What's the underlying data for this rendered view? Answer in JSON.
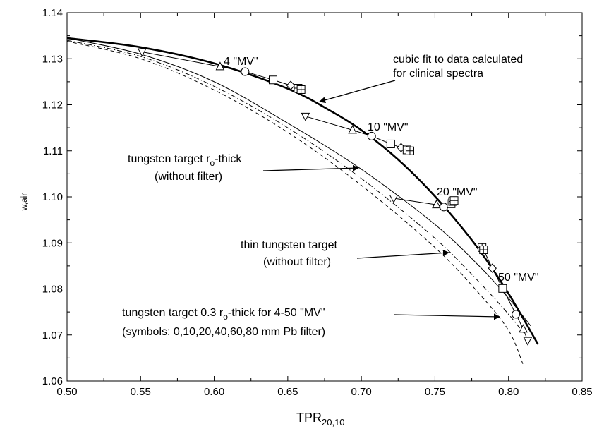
{
  "chart_data": {
    "type": "line",
    "title": "",
    "xlabel": {
      "main": "TPR",
      "sub": "20,10"
    },
    "ylabel": "w,air",
    "xlim": [
      0.5,
      0.85
    ],
    "ylim": [
      1.06,
      1.14
    ],
    "xticks": [
      0.5,
      0.55,
      0.6,
      0.65,
      0.7,
      0.75,
      0.8,
      0.85
    ],
    "yticks": [
      1.06,
      1.07,
      1.08,
      1.09,
      1.1,
      1.11,
      1.12,
      1.13,
      1.14
    ],
    "xtick_labels": [
      "0.50",
      "0.55",
      "0.60",
      "0.65",
      "0.70",
      "0.75",
      "0.80",
      "0.85"
    ],
    "ytick_labels": [
      "1.06",
      "1.07",
      "1.08",
      "1.09",
      "1.10",
      "1.11",
      "1.12",
      "1.13",
      "1.14"
    ],
    "grid": false,
    "curves": [
      {
        "style": "thick-solid",
        "x": [
          0.5,
          0.55,
          0.6,
          0.65,
          0.68,
          0.7,
          0.72,
          0.74,
          0.76,
          0.78,
          0.8,
          0.82
        ],
        "y": [
          1.1345,
          1.1325,
          1.129,
          1.1235,
          1.1185,
          1.1145,
          1.1095,
          1.1035,
          1.0965,
          1.0885,
          1.079,
          1.068
        ]
      },
      {
        "style": "thin-solid",
        "x": [
          0.5,
          0.55,
          0.6,
          0.65,
          0.7,
          0.75,
          0.78,
          0.8,
          0.815
        ],
        "y": [
          1.1345,
          1.131,
          1.125,
          1.116,
          1.106,
          1.094,
          1.085,
          1.078,
          1.072
        ]
      },
      {
        "style": "dash-dot",
        "x": [
          0.5,
          0.55,
          0.6,
          0.65,
          0.7,
          0.75,
          0.78,
          0.8,
          0.81
        ],
        "y": [
          1.134,
          1.1305,
          1.124,
          1.115,
          1.104,
          1.091,
          1.0815,
          1.0745,
          1.0705
        ]
      },
      {
        "style": "dashed",
        "x": [
          0.5,
          0.55,
          0.6,
          0.65,
          0.7,
          0.75,
          0.78,
          0.8,
          0.81
        ],
        "y": [
          1.1338,
          1.13,
          1.1232,
          1.114,
          1.1025,
          1.089,
          1.079,
          1.071,
          1.0635
        ]
      }
    ],
    "energy_groups": [
      {
        "label": "4 \"MV\"",
        "points": [
          {
            "sym": "triangle-down",
            "x": 0.551,
            "y": 1.1315
          },
          {
            "sym": "triangle-up",
            "x": 0.604,
            "y": 1.1283
          },
          {
            "sym": "circle",
            "x": 0.621,
            "y": 1.1272
          },
          {
            "sym": "square",
            "x": 0.64,
            "y": 1.1254
          },
          {
            "sym": "diamond",
            "x": 0.652,
            "y": 1.1242
          },
          {
            "sym": "square-cross",
            "x": 0.657,
            "y": 1.1236
          },
          {
            "sym": "square-cross",
            "x": 0.659,
            "y": 1.1233
          }
        ]
      },
      {
        "label": "10 \"MV\"",
        "points": [
          {
            "sym": "triangle-down",
            "x": 0.662,
            "y": 1.1175
          },
          {
            "sym": "triangle-up",
            "x": 0.694,
            "y": 1.1145
          },
          {
            "sym": "circle",
            "x": 0.707,
            "y": 1.1132
          },
          {
            "sym": "square",
            "x": 0.72,
            "y": 1.1115
          },
          {
            "sym": "diamond",
            "x": 0.727,
            "y": 1.1107
          },
          {
            "sym": "square-cross",
            "x": 0.731,
            "y": 1.1102
          },
          {
            "sym": "square-cross",
            "x": 0.733,
            "y": 1.11
          }
        ]
      },
      {
        "label": "20 \"MV\"",
        "points": [
          {
            "sym": "triangle-down",
            "x": 0.722,
            "y": 1.0997
          },
          {
            "sym": "triangle-up",
            "x": 0.751,
            "y": 1.0983
          },
          {
            "sym": "circle",
            "x": 0.756,
            "y": 1.0978
          },
          {
            "sym": "square",
            "x": 0.761,
            "y": 1.0985
          },
          {
            "sym": "square-cross",
            "x": 0.762,
            "y": 1.099
          },
          {
            "sym": "square-cross",
            "x": 0.763,
            "y": 1.0992
          }
        ]
      },
      {
        "label": "50 \"MV\"",
        "points": [
          {
            "sym": "square-cross",
            "x": 0.782,
            "y": 1.089
          },
          {
            "sym": "square-cross",
            "x": 0.783,
            "y": 1.0885
          },
          {
            "sym": "diamond",
            "x": 0.789,
            "y": 1.0845
          },
          {
            "sym": "square",
            "x": 0.796,
            "y": 1.0801
          },
          {
            "sym": "circle",
            "x": 0.805,
            "y": 1.0745
          },
          {
            "sym": "triangle-up",
            "x": 0.81,
            "y": 1.0713
          },
          {
            "sym": "triangle-down",
            "x": 0.813,
            "y": 1.0688
          }
        ]
      }
    ],
    "annotations": [
      {
        "lines": [
          "cubic fit to data calculated",
          "for clinical spectra"
        ]
      },
      {
        "lines": [
          "tungsten target r",
          "o",
          "-thick",
          "(without filter)"
        ]
      },
      {
        "lines": [
          "thin tungsten target",
          "(without filter)"
        ]
      },
      {
        "lines": [
          "tungsten target 0.3 r",
          "o",
          "-thick for 4-50 \"MV\"",
          "(symbols: 0,10,20,40,60,80 mm Pb filter)"
        ]
      }
    ]
  }
}
